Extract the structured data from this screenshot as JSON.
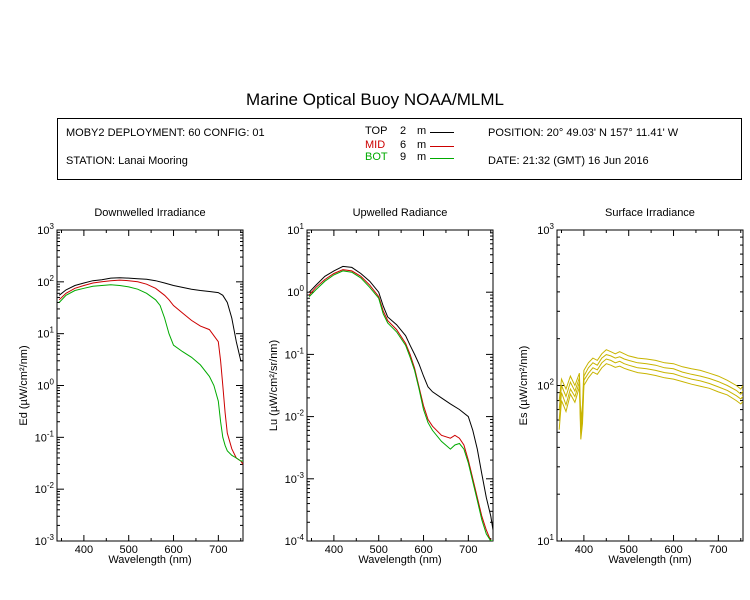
{
  "page": {
    "title": "Marine Optical Buoy NOAA/MLML"
  },
  "info": {
    "deployment": "MOBY2 DEPLOYMENT: 60 CONFIG: 01",
    "station": "STATION: Lanai Mooring",
    "position": "POSITION: 20° 49.03' N   157° 11.41' W",
    "date": "DATE: 21:32 (GMT) 16 Jun 2016",
    "legend": [
      {
        "name": "TOP",
        "depth": "2",
        "unit": "m",
        "color": "#000000"
      },
      {
        "name": "MID",
        "depth": "6",
        "unit": "m",
        "color": "#cc0000"
      },
      {
        "name": "BOT",
        "depth": "9",
        "unit": "m",
        "color": "#00aa00"
      }
    ]
  },
  "chart_data": [
    {
      "type": "line",
      "title": "Downwelled Irradiance",
      "xlabel": "Wavelength (nm)",
      "ylabel": "Ed  (µW/cm²/nm)",
      "xlim": [
        340,
        755
      ],
      "ylim": [
        0.001,
        1000
      ],
      "yscale": "log",
      "xticks": [
        400,
        500,
        600,
        700
      ],
      "yticks": [
        {
          "base": "10",
          "exp": "3"
        },
        {
          "base": "10",
          "exp": "2"
        },
        {
          "base": "10",
          "exp": "1"
        },
        {
          "base": "10",
          "exp": "0"
        },
        {
          "base": "10",
          "exp": "-1"
        },
        {
          "base": "10",
          "exp": "-2"
        },
        {
          "base": "10",
          "exp": "-3"
        }
      ],
      "series": [
        {
          "name": "TOP",
          "color": "#000000",
          "x": [
            345,
            360,
            380,
            400,
            420,
            440,
            460,
            480,
            500,
            520,
            540,
            560,
            580,
            600,
            620,
            640,
            660,
            680,
            700,
            710,
            720,
            730,
            740,
            750,
            755
          ],
          "y": [
            55,
            70,
            85,
            95,
            105,
            110,
            118,
            120,
            118,
            115,
            112,
            105,
            95,
            85,
            78,
            72,
            68,
            65,
            62,
            55,
            40,
            20,
            7,
            3,
            3
          ]
        },
        {
          "name": "MID",
          "color": "#cc0000",
          "x": [
            345,
            360,
            380,
            400,
            420,
            440,
            460,
            480,
            500,
            520,
            540,
            560,
            580,
            590,
            600,
            620,
            640,
            660,
            680,
            700,
            705,
            710,
            715,
            720,
            730,
            740,
            750,
            755
          ],
          "y": [
            45,
            60,
            75,
            85,
            95,
            100,
            105,
            108,
            105,
            100,
            90,
            75,
            55,
            45,
            35,
            25,
            18,
            14,
            12,
            7,
            3,
            1,
            0.3,
            0.12,
            0.06,
            0.04,
            0.035,
            0.03
          ]
        },
        {
          "name": "BOT",
          "color": "#00aa00",
          "x": [
            345,
            360,
            380,
            400,
            420,
            440,
            460,
            480,
            500,
            520,
            540,
            560,
            570,
            580,
            590,
            600,
            620,
            640,
            660,
            680,
            690,
            700,
            705,
            710,
            715,
            720,
            730,
            740,
            750,
            755
          ],
          "y": [
            40,
            55,
            68,
            75,
            82,
            85,
            88,
            85,
            80,
            72,
            60,
            45,
            35,
            20,
            10,
            6,
            4.5,
            3.5,
            2.5,
            1.5,
            1.0,
            0.5,
            0.2,
            0.1,
            0.07,
            0.055,
            0.045,
            0.04,
            0.035,
            0.035
          ]
        }
      ]
    },
    {
      "type": "line",
      "title": "Upwelled Radiance",
      "xlabel": "Wavelength (nm)",
      "ylabel": "Lu (µW/cm²/sr/nm)",
      "xlim": [
        340,
        755
      ],
      "ylim": [
        0.0001,
        10
      ],
      "yscale": "log",
      "xticks": [
        400,
        500,
        600,
        700
      ],
      "yticks": [
        {
          "base": "10",
          "exp": "1"
        },
        {
          "base": "10",
          "exp": "0"
        },
        {
          "base": "10",
          "exp": "-1"
        },
        {
          "base": "10",
          "exp": "-2"
        },
        {
          "base": "10",
          "exp": "-3"
        },
        {
          "base": "10",
          "exp": "-4"
        }
      ],
      "series": [
        {
          "name": "TOP",
          "color": "#000000",
          "x": [
            345,
            360,
            380,
            400,
            420,
            440,
            460,
            480,
            500,
            510,
            520,
            540,
            560,
            570,
            580,
            590,
            600,
            610,
            620,
            640,
            660,
            680,
            700,
            710,
            720,
            730,
            740,
            750,
            755
          ],
          "y": [
            1.0,
            1.3,
            1.8,
            2.2,
            2.6,
            2.5,
            2.0,
            1.5,
            1.0,
            0.6,
            0.4,
            0.3,
            0.2,
            0.14,
            0.1,
            0.07,
            0.045,
            0.03,
            0.025,
            0.02,
            0.016,
            0.013,
            0.01,
            0.006,
            0.003,
            0.0012,
            0.0005,
            0.00025,
            0.00015
          ]
        },
        {
          "name": "MID",
          "color": "#cc0000",
          "x": [
            345,
            360,
            380,
            400,
            420,
            440,
            460,
            480,
            500,
            510,
            520,
            540,
            560,
            570,
            580,
            590,
            600,
            610,
            620,
            640,
            660,
            670,
            680,
            690,
            700,
            710,
            720,
            730,
            740,
            750,
            755
          ],
          "y": [
            0.9,
            1.2,
            1.6,
            2.0,
            2.3,
            2.2,
            1.8,
            1.3,
            0.85,
            0.5,
            0.35,
            0.25,
            0.15,
            0.1,
            0.06,
            0.03,
            0.015,
            0.009,
            0.007,
            0.005,
            0.0045,
            0.005,
            0.0045,
            0.0035,
            0.002,
            0.001,
            0.0005,
            0.00025,
            0.00015,
            0.0001,
            0.0001
          ]
        },
        {
          "name": "BOT",
          "color": "#00aa00",
          "x": [
            345,
            360,
            380,
            400,
            420,
            440,
            460,
            480,
            500,
            510,
            520,
            540,
            560,
            570,
            580,
            590,
            600,
            610,
            620,
            640,
            660,
            670,
            680,
            690,
            700,
            710,
            720,
            730,
            740,
            750,
            755
          ],
          "y": [
            0.85,
            1.1,
            1.5,
            1.9,
            2.2,
            2.1,
            1.7,
            1.2,
            0.8,
            0.45,
            0.32,
            0.23,
            0.14,
            0.09,
            0.055,
            0.028,
            0.013,
            0.008,
            0.006,
            0.004,
            0.003,
            0.0035,
            0.0037,
            0.003,
            0.0018,
            0.0009,
            0.00045,
            0.00022,
            0.00013,
            0.0001,
            0.0001
          ]
        }
      ]
    },
    {
      "type": "line",
      "title": "Surface Irradiance",
      "xlabel": "Wavelength (nm)",
      "ylabel": "Es  (µW/cm²/nm)",
      "xlim": [
        340,
        755
      ],
      "ylim": [
        10,
        1000
      ],
      "yscale": "log",
      "xticks": [
        400,
        500,
        600,
        700
      ],
      "yticks": [
        {
          "base": "10",
          "exp": "3"
        },
        {
          "base": "10",
          "exp": "2"
        },
        {
          "base": "10",
          "exp": "1"
        }
      ],
      "series": [
        {
          "name": "Es",
          "color": "#c8b400",
          "x": [
            345,
            350,
            360,
            370,
            380,
            390,
            393,
            397,
            400,
            410,
            420,
            430,
            440,
            450,
            460,
            470,
            480,
            490,
            500,
            520,
            540,
            560,
            580,
            600,
            620,
            640,
            660,
            680,
            700,
            720,
            740,
            750,
            755
          ],
          "y": [
            80,
            110,
            95,
            115,
            100,
            120,
            60,
            75,
            125,
            140,
            150,
            145,
            160,
            170,
            165,
            160,
            165,
            160,
            155,
            150,
            148,
            145,
            140,
            138,
            132,
            128,
            125,
            120,
            115,
            108,
            100,
            95,
            100
          ]
        },
        {
          "name": "Es",
          "color": "#c8b400",
          "x": [
            345,
            350,
            360,
            370,
            380,
            390,
            393,
            397,
            400,
            410,
            420,
            430,
            440,
            450,
            460,
            470,
            480,
            490,
            500,
            520,
            540,
            560,
            580,
            600,
            620,
            640,
            660,
            680,
            700,
            720,
            740,
            750,
            755
          ],
          "y": [
            70,
            100,
            85,
            105,
            92,
            112,
            55,
            68,
            115,
            130,
            140,
            135,
            150,
            158,
            155,
            150,
            153,
            148,
            145,
            140,
            138,
            135,
            130,
            128,
            122,
            118,
            115,
            111,
            106,
            100,
            93,
            88,
            92
          ]
        },
        {
          "name": "Es",
          "color": "#c8b400",
          "x": [
            345,
            350,
            360,
            370,
            380,
            390,
            393,
            397,
            400,
            410,
            420,
            430,
            440,
            450,
            460,
            470,
            480,
            490,
            500,
            520,
            540,
            560,
            580,
            600,
            620,
            640,
            660,
            680,
            700,
            720,
            740,
            750,
            755
          ],
          "y": [
            60,
            90,
            75,
            95,
            85,
            105,
            50,
            62,
            108,
            120,
            130,
            126,
            140,
            148,
            145,
            140,
            143,
            138,
            135,
            130,
            128,
            125,
            121,
            119,
            114,
            110,
            107,
            103,
            98,
            93,
            86,
            82,
            85
          ]
        },
        {
          "name": "Es",
          "color": "#c8b400",
          "x": [
            345,
            350,
            360,
            370,
            380,
            390,
            393,
            397,
            400,
            410,
            420,
            430,
            440,
            450,
            460,
            470,
            480,
            490,
            500,
            520,
            540,
            560,
            580,
            600,
            620,
            640,
            660,
            680,
            700,
            720,
            740,
            750,
            755
          ],
          "y": [
            52,
            80,
            68,
            88,
            78,
            98,
            45,
            57,
            100,
            112,
            122,
            118,
            130,
            138,
            135,
            131,
            133,
            129,
            126,
            121,
            119,
            116,
            112,
            110,
            106,
            102,
            99,
            96,
            91,
            87,
            80,
            76,
            79
          ]
        }
      ]
    }
  ]
}
